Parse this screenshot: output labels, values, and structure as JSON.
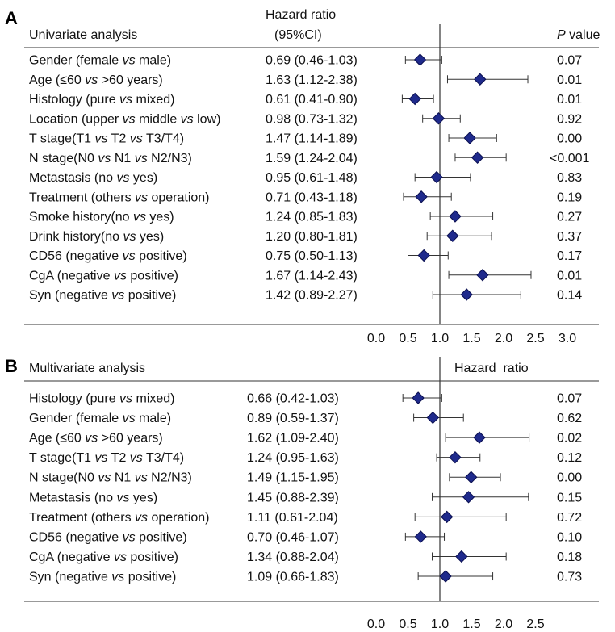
{
  "chart_data": [
    {
      "type": "forest",
      "panel_letter": "A",
      "title": "Univariate analysis",
      "hr_header": "Hazard ratio",
      "ci_header": "(95%CI)",
      "p_header_italic": "P",
      "p_header_rest": " value",
      "xlim": [
        0.0,
        3.0
      ],
      "x_ticks": [
        "0.0",
        "0.5",
        "1.0",
        "1.5",
        "2.0",
        "2.5",
        "3.0"
      ],
      "reference_line": 1.0,
      "marker_color": "#1f2a8c",
      "rows": [
        {
          "label": "Gender (female vs male)",
          "ci_text": "0.69 (0.46-1.03)",
          "p": "0.07",
          "hr": 0.69,
          "lo": 0.46,
          "hi": 1.03
        },
        {
          "label": "Age (≤60 vs >60 years)",
          "ci_text": "1.63 (1.12-2.38)",
          "p": "0.01",
          "hr": 1.63,
          "lo": 1.12,
          "hi": 2.38
        },
        {
          "label": "Histology (pure vs mixed)",
          "ci_text": "0.61 (0.41-0.90)",
          "p": "0.01",
          "hr": 0.61,
          "lo": 0.41,
          "hi": 0.9
        },
        {
          "label": "Location (upper vs middle vs low)",
          "ci_text": "0.98 (0.73-1.32)",
          "p": "0.92",
          "hr": 0.98,
          "lo": 0.73,
          "hi": 1.32
        },
        {
          "label": "T stage(T1 vs T2 vs T3/T4)",
          "ci_text": "1.47 (1.14-1.89)",
          "p": "0.00",
          "hr": 1.47,
          "lo": 1.14,
          "hi": 1.89
        },
        {
          "label": "N stage(N0 vs N1 vs N2/N3)",
          "ci_text": "1.59 (1.24-2.04)",
          "p": "<0.001",
          "hr": 1.59,
          "lo": 1.24,
          "hi": 2.04
        },
        {
          "label": "Metastasis (no vs yes)",
          "ci_text": "0.95 (0.61-1.48)",
          "p": "0.83",
          "hr": 0.95,
          "lo": 0.61,
          "hi": 1.48
        },
        {
          "label": "Treatment (others vs operation)",
          "ci_text": "0.71 (0.43-1.18)",
          "p": "0.19",
          "hr": 0.71,
          "lo": 0.43,
          "hi": 1.18
        },
        {
          "label": "Smoke history(no vs yes)",
          "ci_text": "1.24 (0.85-1.83)",
          "p": "0.27",
          "hr": 1.24,
          "lo": 0.85,
          "hi": 1.83
        },
        {
          "label": "Drink history(no vs yes)",
          "ci_text": "1.20 (0.80-1.81)",
          "p": "0.37",
          "hr": 1.2,
          "lo": 0.8,
          "hi": 1.81
        },
        {
          "label": "CD56 (negative vs positive)",
          "ci_text": "0.75 (0.50-1.13)",
          "p": "0.17",
          "hr": 0.75,
          "lo": 0.5,
          "hi": 1.13
        },
        {
          "label": "CgA (negative vs positive)",
          "ci_text": "1.67 (1.14-2.43)",
          "p": "0.01",
          "hr": 1.67,
          "lo": 1.14,
          "hi": 2.43
        },
        {
          "label": "Syn (negative vs positive)",
          "ci_text": "1.42 (0.89-2.27)",
          "p": "0.14",
          "hr": 1.42,
          "lo": 0.89,
          "hi": 2.27
        }
      ]
    },
    {
      "type": "forest",
      "panel_letter": "B",
      "title": "Multivariate analysis",
      "hr_header": "Hazard  ratio",
      "ci_header": "",
      "p_header_italic": "",
      "p_header_rest": "",
      "xlim": [
        0.0,
        2.5
      ],
      "x_ticks": [
        "0.0",
        "0.5",
        "1.0",
        "1.5",
        "2.0",
        "2.5"
      ],
      "reference_line": 1.0,
      "marker_color": "#1f2a8c",
      "rows": [
        {
          "label": "Histology (pure vs mixed)",
          "ci_text": "0.66 (0.42-1.03)",
          "p": "0.07",
          "hr": 0.66,
          "lo": 0.42,
          "hi": 1.03
        },
        {
          "label": "Gender (female vs male)",
          "ci_text": "0.89 (0.59-1.37)",
          "p": "0.62",
          "hr": 0.89,
          "lo": 0.59,
          "hi": 1.37
        },
        {
          "label": "Age (≤60 vs >60 years)",
          "ci_text": "1.62 (1.09-2.40)",
          "p": "0.02",
          "hr": 1.62,
          "lo": 1.09,
          "hi": 2.4
        },
        {
          "label": "T stage(T1 vs T2 vs T3/T4)",
          "ci_text": "1.24 (0.95-1.63)",
          "p": "0.12",
          "hr": 1.24,
          "lo": 0.95,
          "hi": 1.63
        },
        {
          "label": "N stage(N0 vs N1 vs N2/N3)",
          "ci_text": "1.49 (1.15-1.95)",
          "p": "0.00",
          "hr": 1.49,
          "lo": 1.15,
          "hi": 1.95
        },
        {
          "label": "Metastasis (no vs yes)",
          "ci_text": "1.45 (0.88-2.39)",
          "p": "0.15",
          "hr": 1.45,
          "lo": 0.88,
          "hi": 2.39
        },
        {
          "label": "Treatment (others vs operation)",
          "ci_text": "1.11 (0.61-2.04)",
          "p": "0.72",
          "hr": 1.11,
          "lo": 0.61,
          "hi": 2.04
        },
        {
          "label": "CD56 (negative vs positive)",
          "ci_text": "0.70 (0.46-1.07)",
          "p": "0.10",
          "hr": 0.7,
          "lo": 0.46,
          "hi": 1.07
        },
        {
          "label": "CgA (negative vs positive)",
          "ci_text": "1.34 (0.88-2.04)",
          "p": "0.18",
          "hr": 1.34,
          "lo": 0.88,
          "hi": 2.04
        },
        {
          "label": "Syn (negative vs positive)",
          "ci_text": "1.09 (0.66-1.83)",
          "p": "0.73",
          "hr": 1.09,
          "lo": 0.66,
          "hi": 1.83
        }
      ]
    }
  ]
}
